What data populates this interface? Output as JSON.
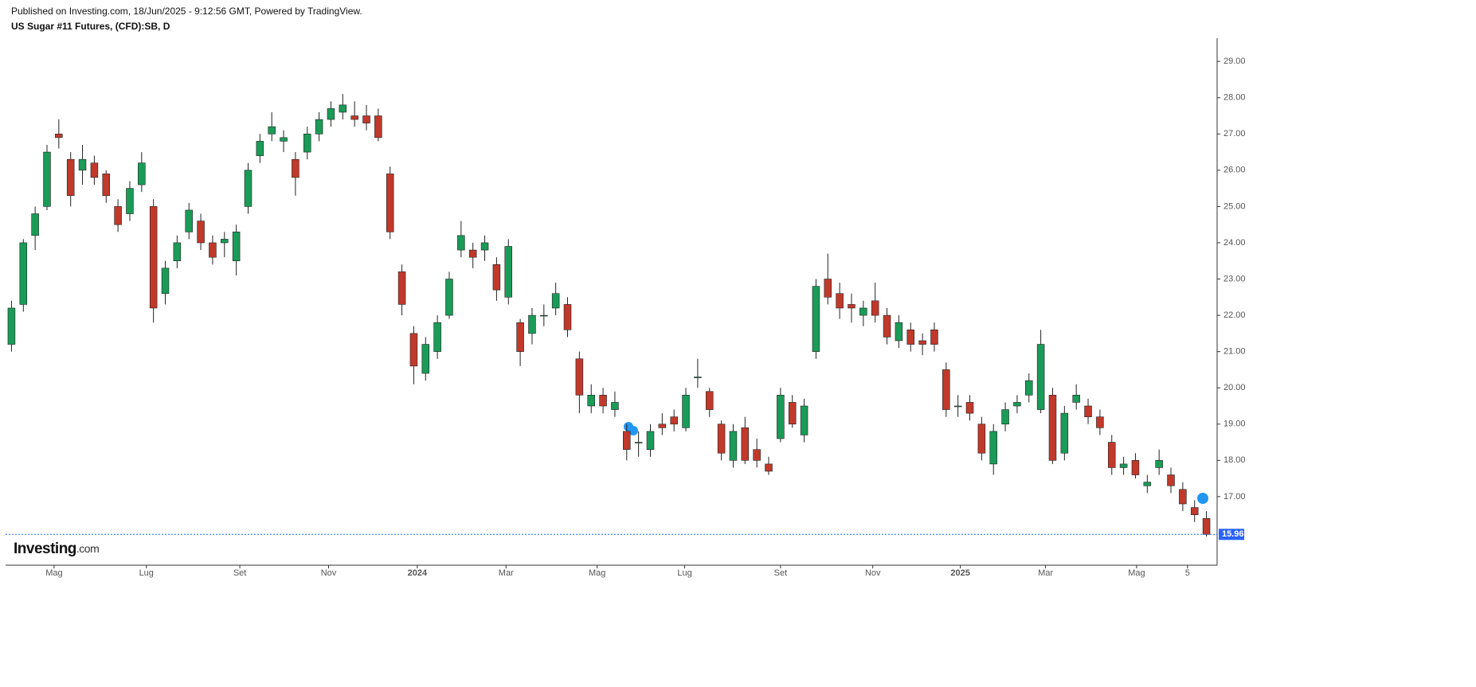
{
  "header": {
    "published": "Published on Investing.com, 18/Jun/2025 - 9:12:56 GMT, Powered by TradingView.",
    "symbol": "US Sugar #11 Futures, (CFD):SB, D"
  },
  "logo": {
    "brand": "Investing",
    "suffix": ".com"
  },
  "chart_data": {
    "type": "candlestick",
    "up_color": "#1a9b57",
    "down_color": "#c0392b",
    "last_line_color": "#2962ff",
    "open": [
      21.2,
      22.3,
      24.2,
      25.0,
      27.0,
      26.3,
      26.0,
      26.2,
      25.9,
      25.0,
      24.8,
      25.6,
      25.0,
      22.6,
      23.5,
      24.3,
      24.6,
      24.0,
      24.0,
      23.5,
      25.0,
      26.4,
      27.0,
      26.8,
      26.3,
      26.5,
      27.0,
      27.4,
      27.6,
      27.5,
      27.5,
      27.5,
      25.9,
      23.2,
      21.5,
      20.4,
      21.0,
      22.0,
      23.8,
      23.8,
      23.8,
      23.4,
      22.5,
      21.8,
      21.5,
      22.0,
      22.2,
      22.3,
      20.8,
      19.5,
      19.8,
      19.4,
      18.8,
      18.5,
      18.3,
      19.0,
      19.2,
      18.9,
      20.3,
      19.9,
      19.0,
      18.0,
      18.9,
      18.3,
      17.9,
      18.6,
      19.6,
      18.7,
      21.0,
      23.0,
      22.6,
      22.3,
      22.0,
      22.4,
      22.0,
      21.3,
      21.6,
      21.3,
      21.6,
      20.5,
      19.5,
      19.6,
      19.0,
      17.9,
      19.0,
      19.5,
      19.8,
      19.4,
      19.8,
      18.2,
      19.6,
      19.5,
      19.2,
      18.5,
      17.8,
      18.0,
      17.3,
      17.8,
      17.6,
      17.2,
      16.7,
      16.4
    ],
    "close": [
      22.2,
      24.0,
      24.8,
      26.5,
      26.9,
      25.3,
      26.3,
      25.8,
      25.3,
      24.5,
      25.5,
      26.2,
      22.2,
      23.3,
      24.0,
      24.9,
      24.0,
      23.6,
      24.1,
      24.3,
      26.0,
      26.8,
      27.2,
      26.9,
      25.8,
      27.0,
      27.4,
      27.7,
      27.8,
      27.4,
      27.3,
      26.9,
      24.3,
      22.3,
      20.6,
      21.2,
      21.8,
      23.0,
      24.2,
      23.6,
      24.0,
      22.7,
      23.9,
      21.0,
      22.0,
      22.0,
      22.6,
      21.6,
      19.8,
      19.8,
      19.5,
      19.6,
      18.3,
      18.5,
      18.8,
      18.9,
      19.0,
      19.8,
      20.3,
      19.4,
      18.2,
      18.8,
      18.0,
      18.0,
      17.7,
      19.8,
      19.0,
      19.5,
      22.8,
      22.5,
      22.2,
      22.2,
      22.2,
      22.0,
      21.4,
      21.8,
      21.2,
      21.2,
      21.2,
      19.4,
      19.5,
      19.3,
      18.2,
      18.8,
      19.4,
      19.6,
      20.2,
      21.2,
      18.0,
      19.3,
      19.8,
      19.2,
      18.9,
      17.8,
      17.9,
      17.6,
      17.4,
      18.0,
      17.3,
      16.8,
      16.5,
      15.96
    ],
    "high": [
      22.4,
      24.1,
      25.0,
      26.7,
      27.4,
      26.5,
      26.7,
      26.4,
      26.0,
      25.2,
      25.7,
      26.5,
      25.2,
      23.5,
      24.2,
      25.1,
      24.8,
      24.2,
      24.3,
      24.5,
      26.2,
      27.0,
      27.6,
      27.1,
      26.5,
      27.2,
      27.6,
      27.9,
      28.1,
      27.9,
      27.8,
      27.7,
      26.1,
      23.4,
      21.7,
      21.4,
      22.0,
      23.2,
      24.6,
      24.0,
      24.2,
      23.6,
      24.1,
      21.9,
      22.2,
      22.3,
      22.9,
      22.5,
      21.0,
      20.1,
      20.0,
      19.9,
      19.0,
      18.8,
      19.0,
      19.3,
      19.4,
      20.0,
      20.8,
      20.0,
      19.1,
      19.0,
      19.2,
      18.6,
      18.1,
      20.0,
      19.8,
      19.7,
      23.0,
      23.7,
      22.9,
      22.6,
      22.4,
      22.9,
      22.2,
      22.0,
      21.8,
      21.5,
      21.8,
      20.7,
      19.8,
      19.8,
      19.2,
      19.0,
      19.6,
      19.8,
      20.4,
      21.6,
      20.0,
      19.5,
      20.1,
      19.7,
      19.4,
      18.7,
      18.1,
      18.2,
      17.6,
      18.3,
      17.8,
      17.4,
      16.9,
      16.6
    ],
    "low": [
      21.0,
      22.1,
      23.8,
      24.9,
      26.6,
      25.0,
      25.6,
      25.6,
      25.1,
      24.3,
      24.6,
      25.4,
      21.8,
      22.3,
      23.3,
      24.1,
      23.8,
      23.4,
      23.6,
      23.1,
      24.8,
      26.2,
      26.8,
      26.5,
      25.3,
      26.3,
      26.8,
      27.2,
      27.4,
      27.2,
      27.1,
      26.8,
      24.1,
      22.0,
      20.1,
      20.2,
      20.8,
      21.9,
      23.6,
      23.3,
      23.5,
      22.4,
      22.3,
      20.6,
      21.2,
      21.7,
      22.0,
      21.4,
      19.3,
      19.3,
      19.3,
      19.2,
      18.0,
      18.1,
      18.1,
      18.7,
      18.8,
      18.8,
      20.0,
      19.2,
      18.0,
      17.8,
      17.9,
      17.8,
      17.6,
      18.5,
      18.9,
      18.5,
      20.8,
      22.3,
      21.9,
      21.8,
      21.7,
      21.8,
      21.2,
      21.1,
      21.0,
      20.9,
      21.0,
      19.2,
      19.2,
      19.1,
      18.0,
      17.6,
      18.8,
      19.3,
      19.6,
      19.3,
      17.9,
      18.0,
      19.4,
      19.0,
      18.7,
      17.6,
      17.6,
      17.5,
      17.1,
      17.6,
      17.1,
      16.6,
      16.3,
      15.9
    ],
    "xlim": [
      0,
      102
    ],
    "xticks": [
      {
        "value": 4.1,
        "label": "Mag"
      },
      {
        "value": 11.9,
        "label": "Lug"
      },
      {
        "value": 19.8,
        "label": "Set"
      },
      {
        "value": 27.3,
        "label": "Nov"
      },
      {
        "value": 34.8,
        "label": "2024"
      },
      {
        "value": 42.3,
        "label": "Mar"
      },
      {
        "value": 50.0,
        "label": "Mag"
      },
      {
        "value": 57.4,
        "label": "Lug"
      },
      {
        "value": 65.5,
        "label": "Set"
      },
      {
        "value": 73.3,
        "label": "Nov"
      },
      {
        "value": 80.7,
        "label": "2025"
      },
      {
        "value": 87.9,
        "label": "Mar"
      },
      {
        "value": 95.6,
        "label": "Mag"
      },
      {
        "value": 99.9,
        "label": "5"
      }
    ],
    "ylim": [
      15.11,
      29.64
    ],
    "yticks": [
      {
        "value": 17,
        "label": "17.00"
      },
      {
        "value": 18,
        "label": "18.00"
      },
      {
        "value": 19,
        "label": "19.00"
      },
      {
        "value": 20,
        "label": "20.00"
      },
      {
        "value": 21,
        "label": "21.00"
      },
      {
        "value": 22,
        "label": "22.00"
      },
      {
        "value": 23,
        "label": "23.00"
      },
      {
        "value": 24,
        "label": "24.00"
      },
      {
        "value": 25,
        "label": "25.00"
      },
      {
        "value": 26,
        "label": "26.00"
      },
      {
        "value": 27,
        "label": "27.00"
      },
      {
        "value": 28,
        "label": "28.00"
      },
      {
        "value": 29,
        "label": "29.00"
      }
    ]
  }
}
